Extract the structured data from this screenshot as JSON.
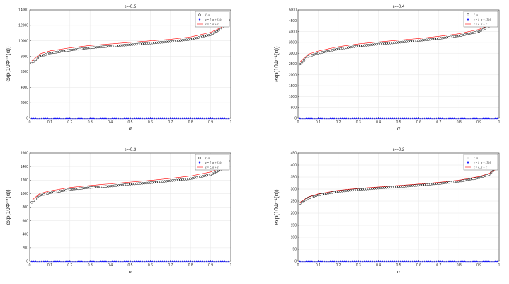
{
  "colors": {
    "series_circles": "#000000",
    "series_stars": "#0000ff",
    "series_line": "#ff0000",
    "grid": "#e6e6e6",
    "axes": "#262626"
  },
  "chart_data": [
    {
      "type": "scatter",
      "title": "ε=-0.5",
      "xlabel": "α",
      "ylabel": "exp(10Φ⁻¹(α))",
      "xlim": [
        0,
        1
      ],
      "ylim": [
        0,
        14000
      ],
      "x_ticks": [
        "0",
        "0.1",
        "0.2",
        "0.3",
        "0.4",
        "0.5",
        "0.6",
        "0.7",
        "0.8",
        "0.9",
        "1"
      ],
      "y_ticks": [
        "0",
        "2000",
        "4000",
        "6000",
        "8000",
        "10000",
        "12000",
        "14000"
      ],
      "grid": true,
      "legend_position": "top-right",
      "series": [
        {
          "name": "ξ_α",
          "marker": "circle",
          "alpha": [
            0.01,
            0.05,
            0.1,
            0.2,
            0.3,
            0.4,
            0.5,
            0.6,
            0.7,
            0.8,
            0.9,
            0.95,
            0.99
          ],
          "values": [
            7100,
            8000,
            8400,
            8800,
            9100,
            9300,
            9500,
            9700,
            9900,
            10200,
            10800,
            11500,
            12700
          ]
        },
        {
          "name": "z = ξ_α + (1/ε)",
          "marker": "star",
          "alpha": [
            0.01,
            0.5,
            0.99
          ],
          "values": [
            0,
            0,
            0
          ]
        },
        {
          "name": "z = ξ_α + T",
          "marker": "line",
          "alpha": [
            0.01,
            0.05,
            0.1,
            0.2,
            0.3,
            0.4,
            0.5,
            0.6,
            0.7,
            0.8,
            0.9,
            0.95,
            0.99
          ],
          "values": [
            7400,
            8300,
            8700,
            9100,
            9400,
            9600,
            9800,
            10000,
            10200,
            10500,
            11100,
            11700,
            12600
          ]
        }
      ]
    },
    {
      "type": "scatter",
      "title": "ε=-0.4",
      "xlabel": "α",
      "ylabel": "exp(10Φ⁻¹(α))",
      "xlim": [
        0,
        1
      ],
      "ylim": [
        0,
        5000
      ],
      "x_ticks": [
        "0",
        "0.1",
        "0.2",
        "0.3",
        "0.4",
        "0.5",
        "0.6",
        "0.7",
        "0.8",
        "0.9",
        "1"
      ],
      "y_ticks": [
        "0",
        "500",
        "1000",
        "1500",
        "2000",
        "2500",
        "3000",
        "3500",
        "4000",
        "4500",
        "5000"
      ],
      "grid": true,
      "legend_position": "top-right",
      "series": [
        {
          "name": "ξ_α",
          "marker": "circle",
          "alpha": [
            0.01,
            0.05,
            0.1,
            0.2,
            0.3,
            0.4,
            0.5,
            0.6,
            0.7,
            0.8,
            0.9,
            0.95,
            0.99
          ],
          "values": [
            2500,
            2850,
            3000,
            3200,
            3330,
            3420,
            3500,
            3580,
            3680,
            3800,
            4000,
            4250,
            4600
          ]
        },
        {
          "name": "z = ξ_α + (1/ε)",
          "marker": "star",
          "alpha": [
            0.01,
            0.5,
            0.99
          ],
          "values": [
            0,
            0,
            0
          ]
        },
        {
          "name": "z = ξ_α + T",
          "marker": "line",
          "alpha": [
            0.01,
            0.05,
            0.1,
            0.2,
            0.3,
            0.4,
            0.5,
            0.6,
            0.7,
            0.8,
            0.9,
            0.95,
            0.99
          ],
          "values": [
            2600,
            2950,
            3100,
            3300,
            3430,
            3520,
            3600,
            3680,
            3780,
            3900,
            4100,
            4300,
            4550
          ]
        }
      ]
    },
    {
      "type": "scatter",
      "title": "ε=-0.3",
      "xlabel": "α",
      "ylabel": "exp(10Φ⁻¹(α))",
      "xlim": [
        0,
        1
      ],
      "ylim": [
        0,
        1600
      ],
      "x_ticks": [
        "0",
        "0.1",
        "0.2",
        "0.3",
        "0.4",
        "0.5",
        "0.6",
        "0.7",
        "0.8",
        "0.9",
        "1"
      ],
      "y_ticks": [
        "0",
        "200",
        "400",
        "600",
        "800",
        "1000",
        "1200",
        "1400",
        "1600"
      ],
      "grid": true,
      "legend_position": "top-right",
      "series": [
        {
          "name": "ξ_α",
          "marker": "circle",
          "alpha": [
            0.01,
            0.05,
            0.1,
            0.2,
            0.3,
            0.4,
            0.5,
            0.6,
            0.7,
            0.8,
            0.9,
            0.95,
            0.99
          ],
          "values": [
            870,
            970,
            1010,
            1060,
            1090,
            1110,
            1140,
            1160,
            1190,
            1220,
            1280,
            1350,
            1480
          ]
        },
        {
          "name": "z = ξ_α + (1/ε)",
          "marker": "star",
          "alpha": [
            0.01,
            0.5,
            0.99
          ],
          "values": [
            0,
            0,
            0
          ]
        },
        {
          "name": "z = ξ_α + T",
          "marker": "line",
          "alpha": [
            0.01,
            0.05,
            0.1,
            0.2,
            0.3,
            0.4,
            0.5,
            0.6,
            0.7,
            0.8,
            0.9,
            0.95,
            0.99
          ],
          "values": [
            900,
            1000,
            1040,
            1090,
            1120,
            1145,
            1170,
            1195,
            1225,
            1260,
            1320,
            1380,
            1450
          ]
        }
      ]
    },
    {
      "type": "scatter",
      "title": "ε=-0.2",
      "xlabel": "α",
      "ylabel": "exp(10Φ⁻¹(α))",
      "xlim": [
        0,
        1
      ],
      "ylim": [
        0,
        450
      ],
      "x_ticks": [
        "0",
        "0.1",
        "0.2",
        "0.3",
        "0.4",
        "0.5",
        "0.6",
        "0.7",
        "0.8",
        "0.9",
        "1"
      ],
      "y_ticks": [
        "0",
        "50",
        "100",
        "150",
        "200",
        "250",
        "300",
        "350",
        "400",
        "450"
      ],
      "grid": true,
      "legend_position": "top-right",
      "series": [
        {
          "name": "ξ_α",
          "marker": "circle",
          "alpha": [
            0.01,
            0.05,
            0.1,
            0.2,
            0.3,
            0.4,
            0.5,
            0.6,
            0.7,
            0.8,
            0.9,
            0.95,
            0.99
          ],
          "values": [
            240,
            262,
            275,
            290,
            298,
            304,
            310,
            316,
            323,
            332,
            347,
            360,
            392
          ]
        },
        {
          "name": "z = ξ_α + (1/ε)",
          "marker": "star",
          "alpha": [
            0.01,
            0.5,
            0.99
          ],
          "values": [
            0,
            0,
            0
          ]
        },
        {
          "name": "z = ξ_α + T",
          "marker": "line",
          "alpha": [
            0.01,
            0.05,
            0.1,
            0.2,
            0.3,
            0.4,
            0.5,
            0.6,
            0.7,
            0.8,
            0.9,
            0.95,
            0.99
          ],
          "values": [
            245,
            267,
            280,
            295,
            303,
            309,
            315,
            321,
            328,
            337,
            352,
            365,
            385
          ]
        }
      ]
    }
  ]
}
